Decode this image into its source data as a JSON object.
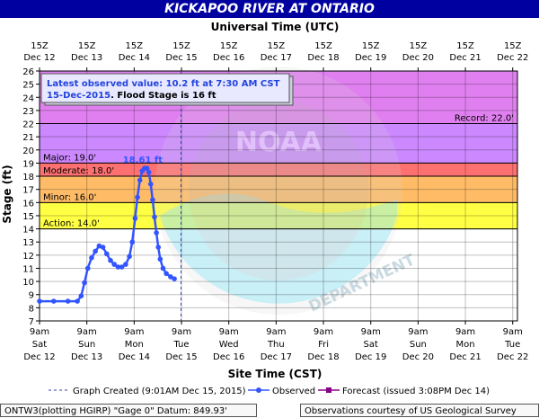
{
  "header": {
    "title": "KICKAPOO RIVER AT ONTARIO",
    "top_axis_title": "Universal Time (UTC)",
    "bottom_axis_title": "Site Time (CST)",
    "y_axis_title": "Stage (ft)"
  },
  "info_box": {
    "line1": "Latest observed value: 10.2 ft at 7:30 AM CST",
    "line2_date": "15-Dec-2015",
    "line2_rest": ". Flood Stage is 16 ft"
  },
  "legend": {
    "graph_created": "Graph Created (9:01AM Dec 15, 2015)",
    "observed": "Observed",
    "forecast": "Forecast (issued 3:08PM Dec 14)"
  },
  "footer": {
    "left": "ONTW3(plotting HGIRP) \"Gage 0\" Datum: 849.93'",
    "right": "Observations courtesy of US Geological Survey"
  },
  "colors": {
    "record": "#e080f0",
    "major": "#cc88ff",
    "moderate": "#ff7070",
    "minor": "#ffbb66",
    "action": "#ffff44",
    "observed": "#3355ff",
    "forecast": "#880088",
    "title_bg": "#0000a0"
  },
  "chart_data": {
    "type": "line",
    "ylim": [
      7,
      26
    ],
    "yticks": [
      7,
      8,
      9,
      10,
      11,
      12,
      13,
      14,
      15,
      16,
      17,
      18,
      19,
      20,
      21,
      22,
      23,
      24,
      25,
      26
    ],
    "xlim_days": [
      0,
      10.1
    ],
    "top_ticks": [
      {
        "t": "15Z",
        "d": "Dec 12"
      },
      {
        "t": "15Z",
        "d": "Dec 13"
      },
      {
        "t": "15Z",
        "d": "Dec 14"
      },
      {
        "t": "15Z",
        "d": "Dec 15"
      },
      {
        "t": "15Z",
        "d": "Dec 16"
      },
      {
        "t": "15Z",
        "d": "Dec 17"
      },
      {
        "t": "15Z",
        "d": "Dec 18"
      },
      {
        "t": "15Z",
        "d": "Dec 19"
      },
      {
        "t": "15Z",
        "d": "Dec 20"
      },
      {
        "t": "15Z",
        "d": "Dec 21"
      },
      {
        "t": "15Z",
        "d": "Dec 22"
      }
    ],
    "bottom_ticks": [
      {
        "t": "9am",
        "w": "Sat",
        "d": "Dec 12"
      },
      {
        "t": "9am",
        "w": "Sun",
        "d": "Dec 13"
      },
      {
        "t": "9am",
        "w": "Mon",
        "d": "Dec 14"
      },
      {
        "t": "9am",
        "w": "Tue",
        "d": "Dec 15"
      },
      {
        "t": "9am",
        "w": "Wed",
        "d": "Dec 16"
      },
      {
        "t": "9am",
        "w": "Thu",
        "d": "Dec 17"
      },
      {
        "t": "9am",
        "w": "Fri",
        "d": "Dec 18"
      },
      {
        "t": "9am",
        "w": "Sat",
        "d": "Dec 19"
      },
      {
        "t": "9am",
        "w": "Sun",
        "d": "Dec 20"
      },
      {
        "t": "9am",
        "w": "Mon",
        "d": "Dec 21"
      },
      {
        "t": "9am",
        "w": "Tue",
        "d": "Dec 22"
      }
    ],
    "thresholds": [
      {
        "name": "record",
        "label": "Record: 22.0'",
        "value": 22.0
      },
      {
        "name": "major",
        "label": "Major: 19.0'",
        "value": 19.0
      },
      {
        "name": "moderate",
        "label": "Moderate: 18.0'",
        "value": 18.0
      },
      {
        "name": "minor",
        "label": "Minor: 16.0'",
        "value": 16.0
      },
      {
        "name": "action",
        "label": "Action: 14.0'",
        "value": 14.0
      }
    ],
    "peak_label": "18.61 ft",
    "peak": {
      "day": 2.22,
      "value": 18.61
    },
    "graph_created_day": 2.99,
    "observed": [
      [
        0.0,
        8.5
      ],
      [
        0.3,
        8.5
      ],
      [
        0.6,
        8.5
      ],
      [
        0.8,
        8.5
      ],
      [
        0.88,
        8.9
      ],
      [
        0.95,
        9.9
      ],
      [
        1.02,
        11.0
      ],
      [
        1.1,
        11.8
      ],
      [
        1.18,
        12.3
      ],
      [
        1.26,
        12.7
      ],
      [
        1.34,
        12.6
      ],
      [
        1.42,
        12.1
      ],
      [
        1.5,
        11.6
      ],
      [
        1.58,
        11.3
      ],
      [
        1.66,
        11.1
      ],
      [
        1.74,
        11.1
      ],
      [
        1.82,
        11.3
      ],
      [
        1.9,
        11.9
      ],
      [
        1.96,
        13.0
      ],
      [
        2.02,
        14.8
      ],
      [
        2.07,
        16.4
      ],
      [
        2.12,
        17.7
      ],
      [
        2.17,
        18.4
      ],
      [
        2.22,
        18.61
      ],
      [
        2.27,
        18.6
      ],
      [
        2.31,
        18.3
      ],
      [
        2.35,
        17.4
      ],
      [
        2.39,
        16.2
      ],
      [
        2.43,
        14.9
      ],
      [
        2.47,
        13.7
      ],
      [
        2.51,
        12.6
      ],
      [
        2.55,
        11.7
      ],
      [
        2.61,
        11.0
      ],
      [
        2.68,
        10.6
      ],
      [
        2.77,
        10.35
      ],
      [
        2.85,
        10.2
      ]
    ]
  }
}
